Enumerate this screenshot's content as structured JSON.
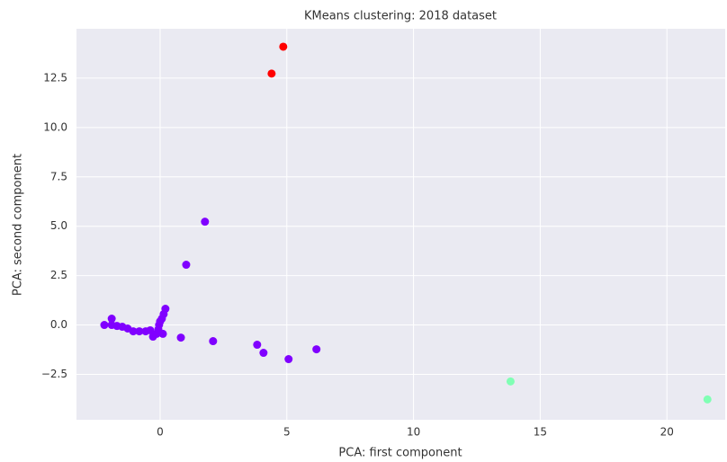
{
  "chart_data": {
    "type": "scatter",
    "title": "KMeans clustering: 2018 dataset",
    "xlabel": "PCA: first component",
    "ylabel": "PCA: second component",
    "xlim": [
      -3.3,
      22.3
    ],
    "ylim": [
      -4.8,
      15.0
    ],
    "xticks": [
      0,
      5,
      10,
      15,
      20
    ],
    "yticks": [
      {
        "value": -2.5,
        "label": "−2.5"
      },
      {
        "value": 0,
        "label": "0.0"
      },
      2.5,
      {
        "value": 5,
        "label": "5.0"
      },
      7.5,
      {
        "value": 10,
        "label": "10.0"
      },
      12.5
    ],
    "grid": true,
    "series": [
      {
        "color": "#8000ff",
        "x": [
          1.77,
          1.03,
          0.21,
          0.14,
          0.07,
          0,
          -0.04,
          -0.07,
          -0.14,
          0.11,
          -0.28,
          0.82,
          2.09,
          3.83,
          4.08,
          5.07,
          6.17,
          -2.2,
          -1.91,
          -1.91,
          -1.7,
          -1.49,
          -1.28,
          -1.06,
          -0.82,
          -0.57,
          -0.39
        ],
        "values": [
          5.23,
          3.05,
          0.82,
          0.55,
          0.32,
          0.18,
          0,
          -0.23,
          -0.45,
          -0.45,
          -0.59,
          -0.64,
          -0.82,
          -1.0,
          -1.41,
          -1.73,
          -1.23,
          0,
          0.32,
          0,
          -0.05,
          -0.09,
          -0.18,
          -0.32,
          -0.32,
          -0.32,
          -0.27
        ]
      },
      {
        "color": "#80ffb4",
        "x": [
          13.83,
          21.6
        ],
        "values": [
          -2.86,
          -3.77
        ]
      },
      {
        "color": "#ff0000",
        "x": [
          4.86,
          4.4
        ],
        "values": [
          14.09,
          12.73
        ]
      }
    ]
  }
}
